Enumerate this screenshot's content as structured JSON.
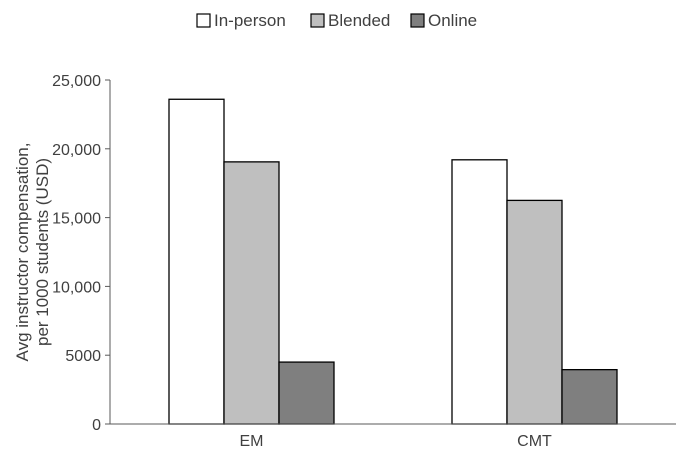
{
  "chart_data": {
    "type": "bar",
    "categories": [
      "EM",
      "CMT"
    ],
    "series": [
      {
        "name": "In-person",
        "values": [
          23600,
          19200
        ],
        "color": "#ffffff"
      },
      {
        "name": "Blended",
        "values": [
          19050,
          16250
        ],
        "color": "#bfbfbf"
      },
      {
        "name": "Online",
        "values": [
          4500,
          3950
        ],
        "color": "#7f7f7f"
      }
    ],
    "ylabel_lines": [
      "Avg instructor compensation,",
      "per 1000 students (USD)"
    ],
    "xlabel": "",
    "ylim": [
      0,
      25000
    ],
    "yticks": [
      {
        "value": 0,
        "label": "0"
      },
      {
        "value": 5000,
        "label": "5000"
      },
      {
        "value": 10000,
        "label": "10,000"
      },
      {
        "value": 15000,
        "label": "15,000"
      },
      {
        "value": 20000,
        "label": "20,000"
      },
      {
        "value": 25000,
        "label": "25,000"
      }
    ],
    "grid": false,
    "legend_position": "top-center",
    "bar_stroke": "#000000"
  }
}
